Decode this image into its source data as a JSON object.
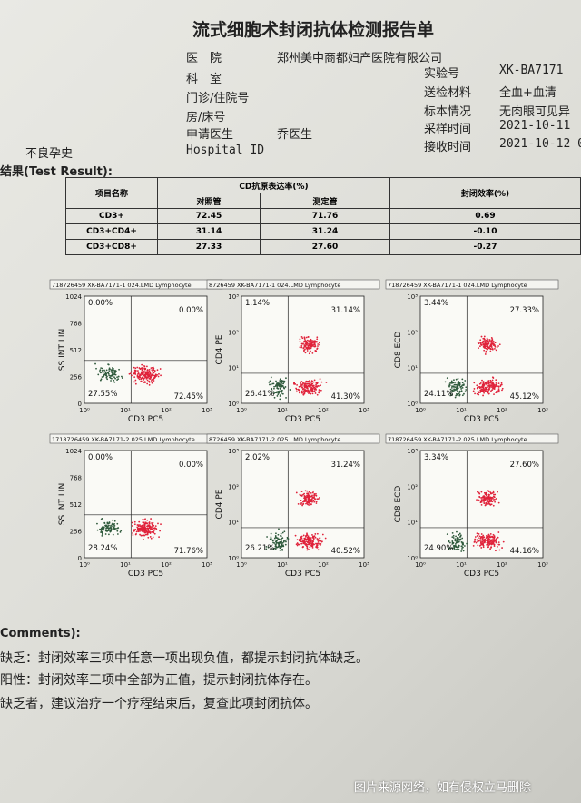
{
  "header": {
    "title": "流式细胞术封闭抗体检测报告单"
  },
  "info": {
    "hospital": {
      "label": "医　院",
      "value": "郑州美中商都妇产医院有限公司"
    },
    "department": {
      "label": "科　室"
    },
    "patient_no": {
      "label": "门诊/住院号"
    },
    "bed": {
      "label": "房/床号"
    },
    "doctor": {
      "label": "申请医生",
      "value": "乔医生"
    },
    "hospital_id": {
      "label": "Hospital ID"
    },
    "history": {
      "label": "不良孕史"
    },
    "lab_no": {
      "label": "实验号",
      "value": "XK-BA7171"
    },
    "material": {
      "label": "送检材料",
      "value": "全血+血清"
    },
    "specimen": {
      "label": "标本情况",
      "value": "无肉眼可见异"
    },
    "sampling_time": {
      "label": "采样时间",
      "value": "2021-10-11"
    },
    "receive_time": {
      "label": "接收时间",
      "value": "2021-10-12 0"
    }
  },
  "results": {
    "title": "结果(Test Result):"
  },
  "table": {
    "headers": [
      "项目名称",
      "CD抗原表达率(%)",
      "对照管",
      "测定管",
      "封闭效率(%)"
    ],
    "rows": [
      [
        "CD3+",
        "72.45",
        "71.76",
        "0.69"
      ],
      [
        "CD3+CD4+",
        "31.14",
        "31.24",
        "-0.10"
      ],
      [
        "CD3+CD8+",
        "27.33",
        "27.60",
        "-0.27"
      ]
    ]
  },
  "plots": [
    {
      "header": "718726459 XK-BA7171-1 024.LMD   Lymphocyte",
      "y_label": "SS INT LIN",
      "x_label": "CD3 PC5",
      "y_ticks": [
        "1024",
        "768",
        "512",
        "256",
        "0"
      ],
      "x_ticks": [
        "10⁰",
        "10¹",
        "10²",
        "10³"
      ],
      "quadrants": [
        "0.00%",
        "0.00%",
        "27.55%",
        "72.45%"
      ]
    },
    {
      "header": "8726459 XK-BA7171-1 024.LMD   Lymphocyte",
      "y_label": "CD4 PE",
      "x_label": "CD3 PC5",
      "y_ticks": [
        "10³",
        "10²",
        "10¹",
        "10⁰"
      ],
      "x_ticks": [
        "10⁰",
        "10¹",
        "10²",
        "10³"
      ],
      "quadrants": [
        "1.14%",
        "31.14%",
        "26.41%",
        "41.30%"
      ]
    },
    {
      "header": "718726459 XK-BA7171-1 024.LMD   Lymphocyte",
      "y_label": "CD8 ECD",
      "x_label": "CD3 PC5",
      "y_ticks": [
        "10³",
        "10²",
        "10¹",
        "10⁰"
      ],
      "x_ticks": [
        "10⁰",
        "10¹",
        "10²",
        "10³"
      ],
      "quadrants": [
        "3.44%",
        "27.33%",
        "24.11%",
        "45.12%"
      ]
    },
    {
      "header": "1718726459 XK-BA7171-2 025.LMD   Lymphocyte",
      "y_label": "SS INT LIN",
      "x_label": "CD3 PC5",
      "y_ticks": [
        "1024",
        "768",
        "512",
        "256",
        "0"
      ],
      "x_ticks": [
        "10⁰",
        "10¹",
        "10²",
        "10³"
      ],
      "quadrants": [
        "0.00%",
        "0.00%",
        "28.24%",
        "71.76%"
      ]
    },
    {
      "header": "8726459 XK-BA7171-2 025.LMD   Lymphocyte",
      "y_label": "CD4 PE",
      "x_label": "CD3 PC5",
      "y_ticks": [
        "10³",
        "10²",
        "10¹",
        "10⁰"
      ],
      "x_ticks": [
        "10⁰",
        "10¹",
        "10²",
        "10³"
      ],
      "quadrants": [
        "2.02%",
        "31.24%",
        "26.21%",
        "40.52%"
      ]
    },
    {
      "header": "718726459 XK-BA7171-2 025.LMD   Lymphocyte",
      "y_label": "CD8 ECD",
      "x_label": "CD3 PC5",
      "y_ticks": [
        "10³",
        "10²",
        "10¹",
        "10⁰"
      ],
      "x_ticks": [
        "10⁰",
        "10¹",
        "10²",
        "10³"
      ],
      "quadrants": [
        "3.34%",
        "27.60%",
        "24.90%",
        "44.16%"
      ]
    }
  ],
  "comments": {
    "title": "Comments):",
    "lines": [
      "缺乏：封闭效率三项中任意一项出现负值，都提示封闭抗体缺乏。",
      "阳性：封闭效率三项中全部为正值，提示封闭抗体存在。",
      "缺乏者，建议治疗一个疗程结束后，复查此项封闭抗体。"
    ]
  },
  "watermark": "图片来源网络，如有侵权立马删除"
}
